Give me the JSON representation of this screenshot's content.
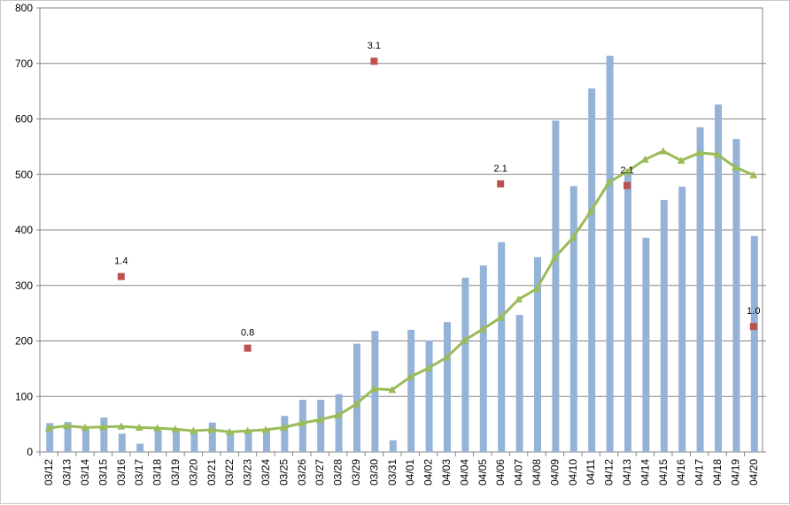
{
  "chart_data": {
    "type": "bar",
    "title": "",
    "xlabel": "",
    "ylabel": "",
    "ylim": [
      0,
      800
    ],
    "yticks": [
      0,
      100,
      200,
      300,
      400,
      500,
      600,
      700,
      800
    ],
    "grid": true,
    "legend": "none",
    "categories": [
      "03/12",
      "03/13",
      "03/14",
      "03/15",
      "03/16",
      "03/17",
      "03/18",
      "03/19",
      "03/20",
      "03/21",
      "03/22",
      "03/23",
      "03/24",
      "03/25",
      "03/26",
      "03/27",
      "03/28",
      "03/29",
      "03/30",
      "03/31",
      "04/01",
      "04/02",
      "04/03",
      "04/04",
      "04/05",
      "04/06",
      "04/07",
      "04/08",
      "04/09",
      "04/10",
      "04/11",
      "04/12",
      "04/13",
      "04/14",
      "04/15",
      "04/16",
      "04/17",
      "04/18",
      "04/19",
      "04/20"
    ],
    "series": [
      {
        "type": "bar",
        "color": "#95b3d7",
        "values": [
          52,
          54,
          41,
          62,
          33,
          15,
          39,
          40,
          35,
          53,
          34,
          37,
          40,
          65,
          94,
          94,
          104,
          195,
          218,
          21,
          220,
          201,
          234,
          314,
          336,
          378,
          247,
          351,
          597,
          479,
          655,
          714,
          501,
          386,
          454,
          478,
          585,
          626,
          564,
          389
        ]
      },
      {
        "type": "line",
        "color": "#9bbb59",
        "marker": "triangle",
        "values": [
          43,
          47,
          44,
          45,
          46,
          44,
          43,
          41,
          38,
          40,
          36,
          38,
          40,
          44,
          52,
          58,
          66,
          86,
          114,
          112,
          135,
          151,
          170,
          201,
          221,
          242,
          275,
          294,
          350,
          386,
          434,
          486,
          505,
          527,
          542,
          525,
          539,
          536,
          513,
          499
        ]
      },
      {
        "type": "scatter",
        "color": "#c0504d",
        "marker": "square",
        "points": [
          {
            "category": "03/16",
            "y": 316,
            "label": "1.4"
          },
          {
            "category": "03/23",
            "y": 187,
            "label": "0.8"
          },
          {
            "category": "03/30",
            "y": 704,
            "label": "3.1"
          },
          {
            "category": "04/06",
            "y": 483,
            "label": "2.1"
          },
          {
            "category": "04/13",
            "y": 480,
            "label": "2.1"
          },
          {
            "category": "04/20",
            "y": 226,
            "label": "1.0"
          }
        ]
      }
    ]
  }
}
